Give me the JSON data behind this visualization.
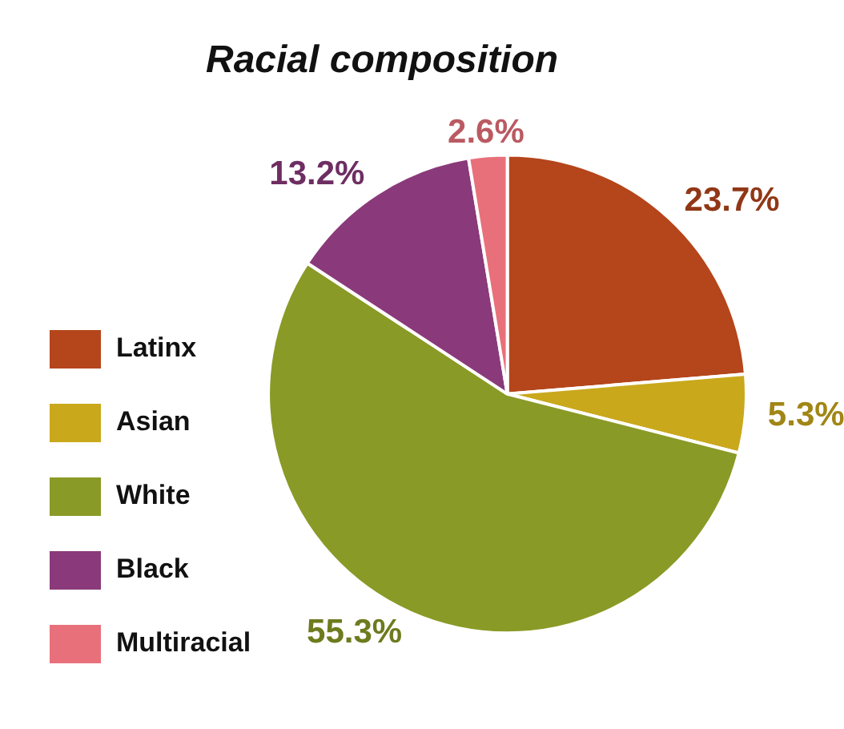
{
  "chart_data": {
    "type": "pie",
    "title": "Racial composition",
    "categories": [
      "Latinx",
      "Asian",
      "White",
      "Black",
      "Multiracial"
    ],
    "values": [
      23.7,
      5.3,
      55.3,
      13.2,
      2.6
    ],
    "value_labels": [
      "23.7%",
      "5.3%",
      "55.3%",
      "13.2%",
      "2.6%"
    ],
    "colors": [
      "#b5451b",
      "#c9a81c",
      "#8a9a26",
      "#8a3a7a",
      "#e8707a"
    ],
    "legend": "left"
  }
}
